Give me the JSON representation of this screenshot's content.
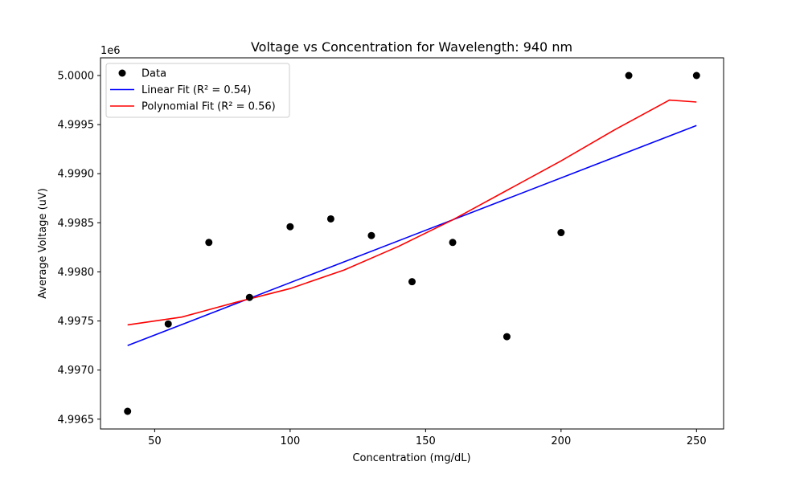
{
  "chart_data": {
    "type": "scatter",
    "title": "Voltage vs Concentration for Wavelength: 940 nm",
    "xlabel": "Concentration (mg/dL)",
    "ylabel": "Average Voltage (uV)",
    "y_offset_label": "1e6",
    "xlim": [
      30,
      260
    ],
    "ylim": [
      4996400,
      5000180
    ],
    "x_ticks": [
      50,
      100,
      150,
      200,
      250
    ],
    "x_tick_labels": [
      "50",
      "100",
      "150",
      "200",
      "250"
    ],
    "y_ticks": [
      4996500,
      4997000,
      4997500,
      4998000,
      4998500,
      4999000,
      4999500,
      5000000
    ],
    "y_tick_labels": [
      "4.9965",
      "4.9970",
      "4.9975",
      "4.9980",
      "4.9985",
      "4.9990",
      "4.9995",
      "5.0000"
    ],
    "grid": false,
    "legend_position": "top-left",
    "series": [
      {
        "name": "Data",
        "kind": "scatter",
        "color": "#000000",
        "x": [
          40,
          55,
          70,
          85,
          100,
          115,
          130,
          145,
          160,
          180,
          200,
          225,
          250
        ],
        "y": [
          4996580,
          4997470,
          4998300,
          4997740,
          4998460,
          4998540,
          4998370,
          4997900,
          4998300,
          4997340,
          4998400,
          5000000,
          5000000
        ]
      },
      {
        "name": "Linear Fit (R² = 0.54)",
        "kind": "line",
        "color": "#0000ff",
        "x": [
          40,
          250
        ],
        "y": [
          4997250,
          4999490
        ]
      },
      {
        "name": "Polynomial Fit (R² = 0.56)",
        "kind": "line",
        "color": "#ff0000",
        "x": [
          40,
          60,
          80,
          100,
          120,
          140,
          160,
          180,
          200,
          220,
          240,
          250
        ],
        "y": [
          4997460,
          4997540,
          4997690,
          4997830,
          4998020,
          4998260,
          4998530,
          4998830,
          4999130,
          4999450,
          4999750,
          4999730
        ]
      }
    ]
  }
}
